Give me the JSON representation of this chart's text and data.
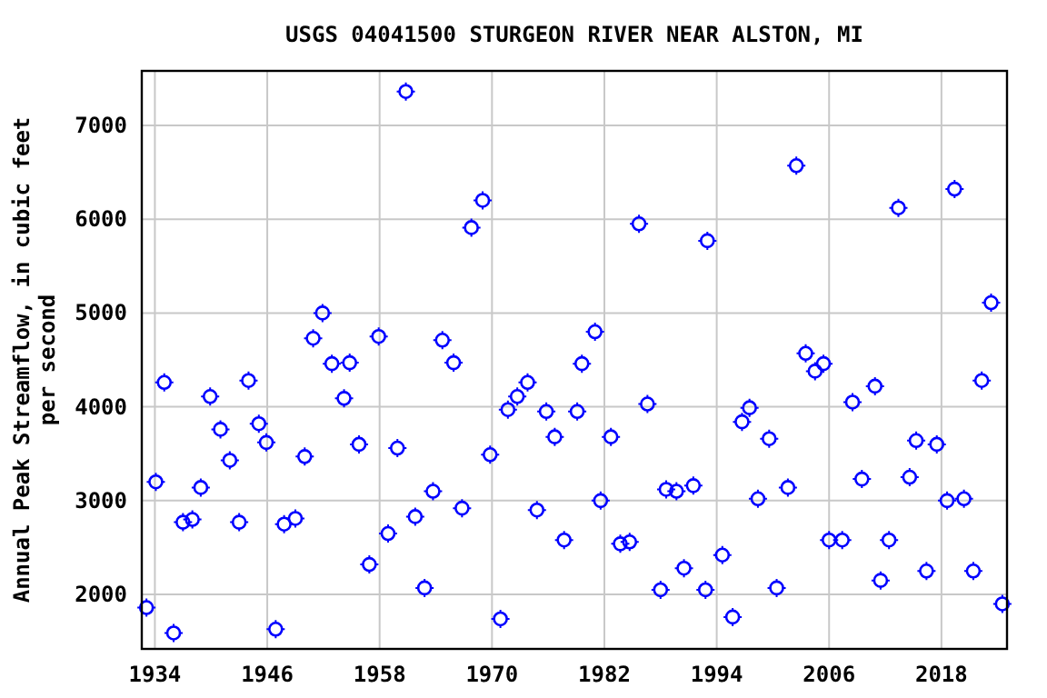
{
  "chart_data": {
    "type": "scatter",
    "title": "USGS 04041500 STURGEON RIVER NEAR ALSTON, MI",
    "ylabel": "Annual Peak Streamflow, in cubic feet per second",
    "xlim": [
      1932.6,
      2025
    ],
    "ylim": [
      1420,
      7580
    ],
    "xticks": [
      1934,
      1946,
      1958,
      1970,
      1982,
      1994,
      2006,
      2018
    ],
    "yticks": [
      2000,
      3000,
      4000,
      5000,
      6000,
      7000
    ],
    "grid": true,
    "marker": "circle",
    "series": [
      {
        "color": "#0000ff",
        "x": [
          1933.1,
          1934.1,
          1935.0,
          1936.0,
          1937.0,
          1938.0,
          1938.9,
          1939.9,
          1941.0,
          1942.0,
          1943.0,
          1944.0,
          1945.1,
          1945.9,
          1946.9,
          1947.8,
          1949.0,
          1950.0,
          1950.9,
          1951.9,
          1952.9,
          1954.2,
          1954.8,
          1955.8,
          1956.9,
          1957.9,
          1958.9,
          1959.9,
          1960.8,
          1961.8,
          1962.8,
          1963.7,
          1964.7,
          1965.9,
          1966.8,
          1967.8,
          1969.0,
          1969.8,
          1970.9,
          1971.7,
          1972.7,
          1973.8,
          1974.8,
          1975.8,
          1976.7,
          1977.7,
          1979.1,
          1979.6,
          1981.0,
          1981.6,
          1982.7,
          1983.7,
          1984.7,
          1985.7,
          1986.6,
          1988.0,
          1988.6,
          1989.7,
          1990.5,
          1991.5,
          1992.8,
          1993.0,
          1994.6,
          1995.7,
          1996.7,
          1997.5,
          1998.4,
          1999.6,
          2000.4,
          2001.6,
          2002.5,
          2003.5,
          2004.5,
          2005.4,
          2006.0,
          2007.4,
          2008.5,
          2009.5,
          2010.9,
          2011.5,
          2012.4,
          2013.4,
          2014.6,
          2015.3,
          2016.4,
          2017.5,
          2018.6,
          2019.4,
          2020.4,
          2021.4,
          2022.3,
          2023.3,
          2024.5
        ],
        "values": [
          1860,
          3200,
          4260,
          1590,
          2770,
          2800,
          3140,
          4110,
          3760,
          3430,
          2770,
          4280,
          3820,
          3620,
          1630,
          2750,
          2810,
          3470,
          4730,
          5000,
          4460,
          4090,
          4470,
          3600,
          2320,
          4750,
          2650,
          3560,
          7360,
          2830,
          2070,
          3100,
          4710,
          4470,
          2920,
          5910,
          6200,
          3490,
          1740,
          3970,
          4110,
          4260,
          2900,
          3950,
          3680,
          2580,
          3950,
          4460,
          4800,
          3000,
          3680,
          2540,
          2560,
          5950,
          4030,
          2050,
          3120,
          3100,
          2280,
          3160,
          2050,
          5770,
          2420,
          1760,
          3840,
          3990,
          3020,
          3660,
          2070,
          3140,
          6570,
          4570,
          4380,
          4460,
          2580,
          2580,
          4050,
          3230,
          4220,
          2150,
          2580,
          6120,
          3250,
          3640,
          2250,
          3600,
          3000,
          6320,
          3020,
          2250,
          4280,
          5110,
          1900
        ]
      }
    ]
  }
}
